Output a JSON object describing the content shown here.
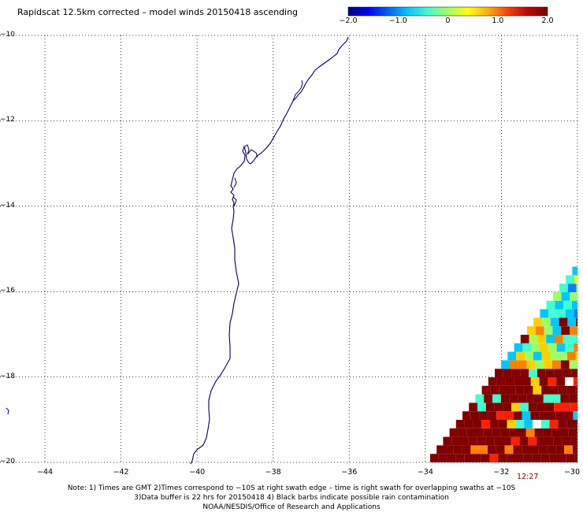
{
  "title": "Rapidscat 12.5km corrected – model winds 20150418 ascending",
  "colorbar": {
    "ticks": [
      "−2.0",
      "−1.0",
      "0",
      "1.0",
      "2.0"
    ],
    "tick_values": [
      -2.0,
      -1.0,
      0,
      1.0,
      2.0
    ],
    "colors": [
      "#00008b",
      "#0000ff",
      "#0060ff",
      "#00c8ff",
      "#40ffd0",
      "#a0ff60",
      "#ffff00",
      "#ffb000",
      "#ff4000",
      "#c00000",
      "#800000"
    ]
  },
  "map": {
    "lon_range": [
      -45,
      -30
    ],
    "lat_range": [
      -20,
      -10
    ],
    "lat_labels": [
      "−10",
      "−12",
      "−14",
      "−16",
      "−18",
      "−20"
    ],
    "lat_values": [
      -10,
      -12,
      -14,
      -16,
      -18,
      -20
    ],
    "lon_labels": [
      "−44",
      "−42",
      "−40",
      "−38",
      "−36",
      "−34",
      "−32",
      "−30"
    ],
    "lon_values": [
      -44,
      -42,
      -40,
      -38,
      -36,
      -34,
      -32,
      -30
    ],
    "grid": "dotted",
    "coastline_color": "#000060",
    "swath_time": "12:27"
  },
  "notes": {
    "line1": "Note: 1) Times are GMT 2)Times correspond to −10S at right swath edge – time is right swath for overlapping swaths at −10S",
    "line2": "3)Data buffer is 22 hrs for 20150418 4) Black barbs indicate possible rain contamination",
    "line3": "NOAA/NESDIS/Office of Research and Applications"
  }
}
